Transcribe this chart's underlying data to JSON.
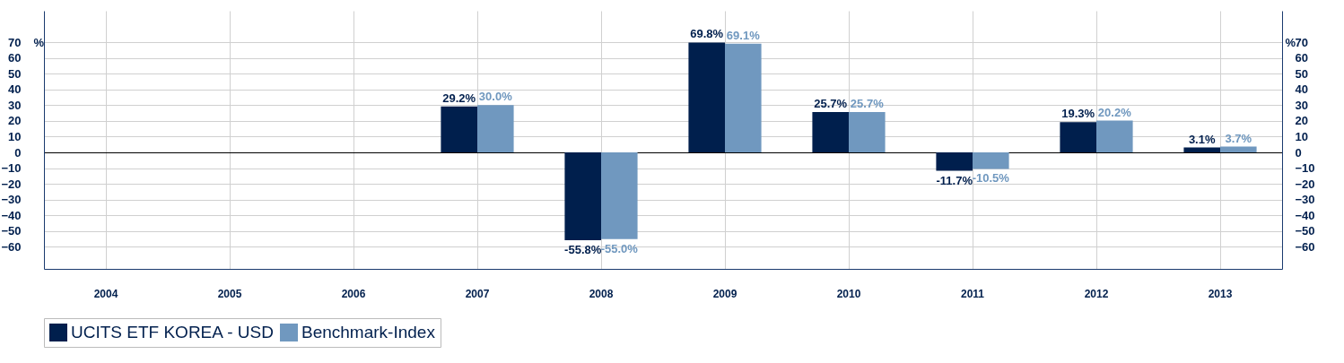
{
  "chart_data": {
    "type": "bar",
    "ylabel": "%",
    "y2label": "%",
    "categories": [
      "2004",
      "2005",
      "2006",
      "2007",
      "2008",
      "2009",
      "2010",
      "2011",
      "2012",
      "2013"
    ],
    "series": [
      {
        "name": "UCITS ETF KOREA - USD",
        "color": "#001f4d",
        "values": [
          null,
          null,
          null,
          29.2,
          -55.8,
          69.8,
          25.7,
          -11.7,
          19.3,
          3.1
        ],
        "value_labels": [
          null,
          null,
          null,
          "29.2%",
          "-55.8%",
          "69.8%",
          "25.7%",
          "-11.7%",
          "19.3%",
          "3.1%"
        ]
      },
      {
        "name": "Benchmark-Index",
        "color": "#7098bf",
        "values": [
          null,
          null,
          null,
          30.0,
          -55.0,
          69.1,
          25.7,
          -10.5,
          20.2,
          3.7
        ],
        "value_labels": [
          null,
          null,
          null,
          "30.0%",
          "-55.0%",
          "69.1%",
          "25.7%",
          "-10.5%",
          "20.2%",
          "3.7%"
        ]
      }
    ],
    "ylim": [
      -74,
      90
    ],
    "yticks": [
      -60,
      -50,
      -40,
      -30,
      -20,
      -10,
      0,
      10,
      20,
      30,
      40,
      50,
      60,
      70
    ],
    "y2lim": [
      -74,
      90
    ],
    "y2ticks": [
      -60,
      -50,
      -40,
      -30,
      -20,
      -10,
      0,
      10,
      20,
      30,
      40,
      50,
      60,
      70
    ],
    "grid": true,
    "legend": "bottom"
  }
}
